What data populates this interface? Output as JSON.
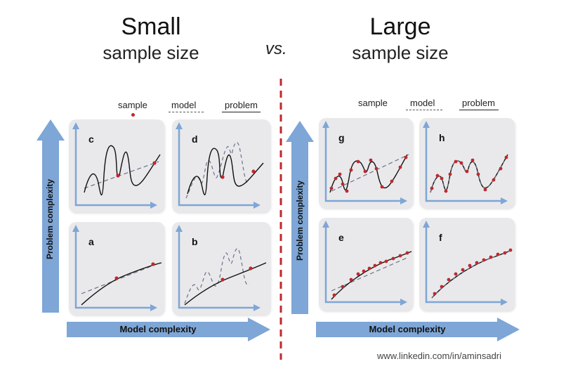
{
  "left": {
    "title": "Small",
    "subtitle": "sample size"
  },
  "right": {
    "title": "Large",
    "subtitle": "sample size"
  },
  "vs_label": "vs.",
  "legend": {
    "sample": "sample",
    "model": "model",
    "problem": "problem"
  },
  "axes": {
    "y_label": "Problem complexity",
    "x_label": "Model complexity"
  },
  "panels": {
    "a": "a",
    "b": "b",
    "c": "c",
    "d": "d",
    "e": "e",
    "f": "f",
    "g": "g",
    "h": "h"
  },
  "footer": "www.linkedin.com/in/aminsadri",
  "colors": {
    "arrow": "#7ea6d6",
    "sample": "#c0282d",
    "divider": "#c0282d",
    "panel_bg": "#e9e9eb",
    "model_line": "#6a7389"
  }
}
